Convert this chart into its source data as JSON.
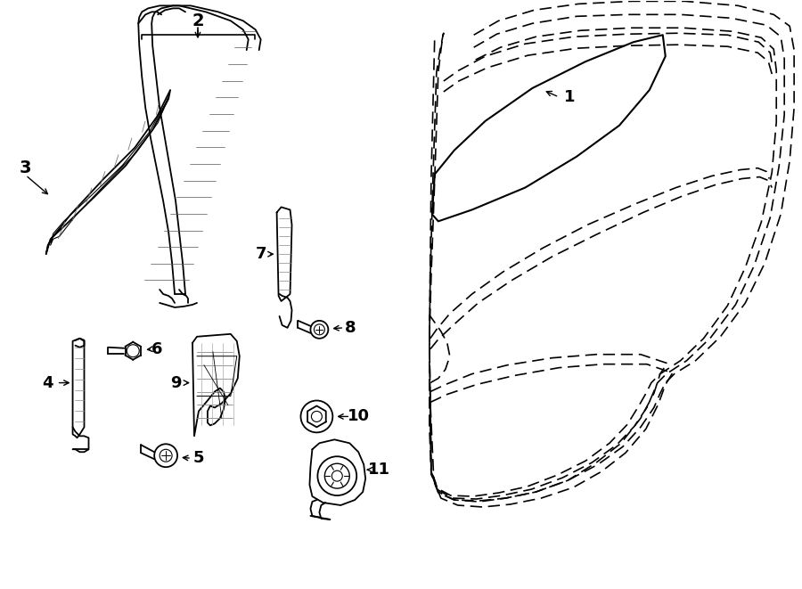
{
  "background_color": "#ffffff",
  "line_color": "#000000",
  "lw": 1.3,
  "fig_w": 9.0,
  "fig_h": 6.61,
  "dpi": 100
}
